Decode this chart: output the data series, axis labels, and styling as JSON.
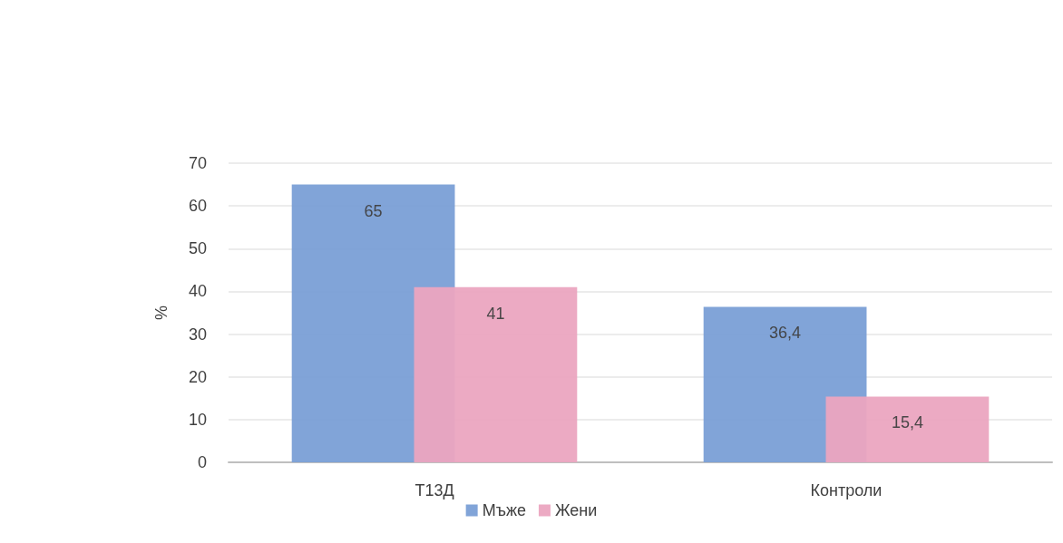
{
  "chart_data": {
    "type": "bar",
    "ylabel": "%",
    "categories": [
      "Т13Д",
      "Контроли"
    ],
    "series": [
      {
        "name": "Мъже",
        "color": "#7a9fd6",
        "values": [
          65,
          36.4
        ],
        "value_labels": [
          "65",
          "36,4"
        ]
      },
      {
        "name": "Жени",
        "color": "#eba5c0",
        "values": [
          41,
          15.4
        ],
        "value_labels": [
          "41",
          "15,4"
        ]
      }
    ],
    "ylim": [
      0,
      70
    ],
    "yticks": [
      0,
      10,
      20,
      30,
      40,
      50,
      60,
      70
    ],
    "grid": "y",
    "legend": "bottom"
  }
}
